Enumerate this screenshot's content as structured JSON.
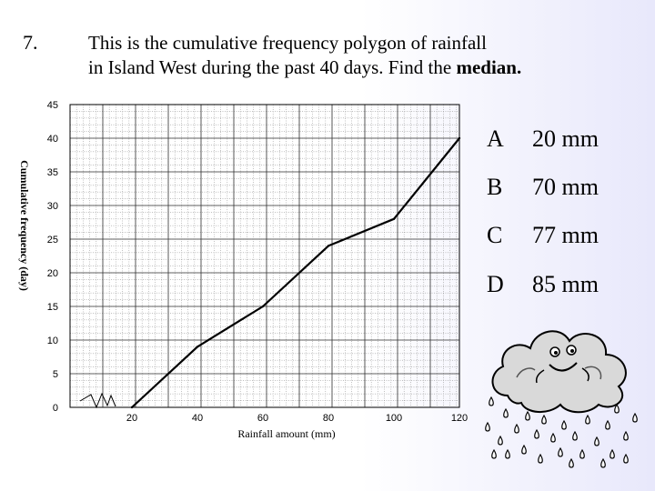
{
  "question": {
    "number": "7.",
    "line1": "This is the cumulative frequency polygon of rainfall",
    "line2_prefix": "in Island West during the past 40 days.  Find the ",
    "line2_bold": "median."
  },
  "options": [
    {
      "letter": "A",
      "text": "20 mm"
    },
    {
      "letter": "B",
      "text": "70 mm"
    },
    {
      "letter": "C",
      "text": "77 mm"
    },
    {
      "letter": "D",
      "text": "85 mm"
    }
  ],
  "chart_data": {
    "type": "line",
    "xlabel": "Rainfall amount (mm)",
    "ylabel": "Cumulative frequency (day)",
    "x_ticks": [
      20,
      40,
      60,
      80,
      100,
      120
    ],
    "y_ticks": [
      0,
      5,
      10,
      15,
      20,
      25,
      30,
      35,
      40,
      45
    ],
    "xlim": [
      0,
      120
    ],
    "ylim": [
      0,
      45
    ],
    "axis_break": true,
    "grid": true,
    "series": [
      {
        "x": [
          20,
          40,
          60,
          80,
          100,
          120
        ],
        "y": [
          0,
          9,
          15,
          24,
          28,
          40
        ]
      }
    ]
  }
}
